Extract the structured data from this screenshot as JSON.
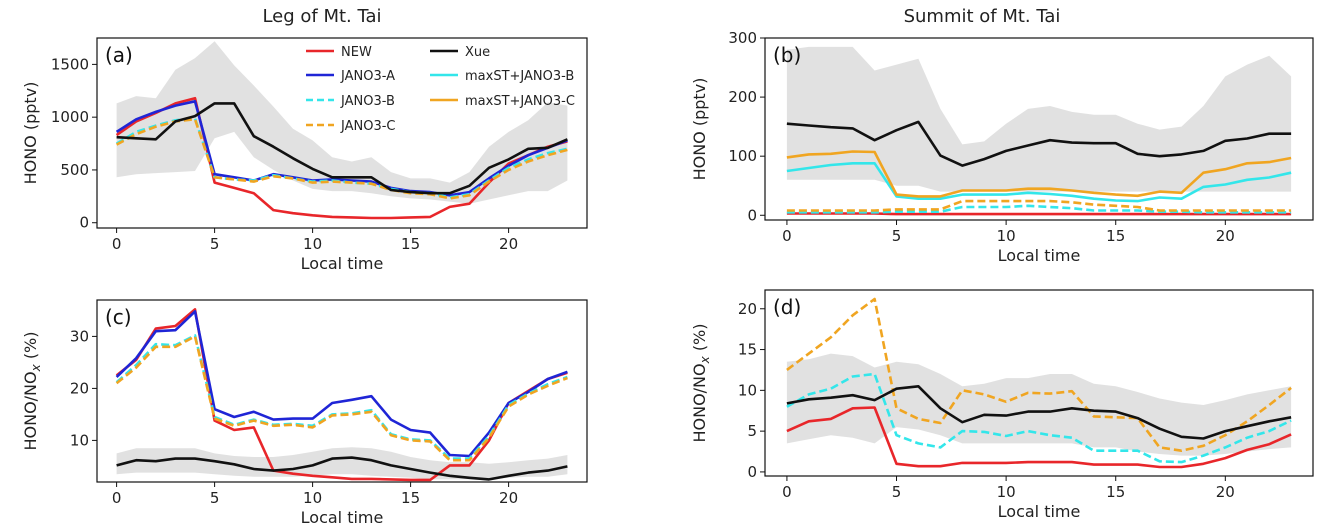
{
  "column_titles": [
    "Leg of Mt. Tai",
    "Summit of Mt. Tai"
  ],
  "colors": {
    "NEW": "#e8262a",
    "JANO3-A": "#1f25d6",
    "JANO3-B": "#33e6ea",
    "JANO3-C": "#f0a521",
    "Xue": "#111111",
    "maxST+JANO3-B": "#33e6ea",
    "maxST+JANO3-C": "#f0a521",
    "band": "#dcdcdc"
  },
  "legend": [
    {
      "name": "NEW",
      "style": "solid"
    },
    {
      "name": "Xue",
      "style": "solid"
    },
    {
      "name": "JANO3-A",
      "style": "solid"
    },
    {
      "name": "maxST+JANO3-B",
      "style": "solid"
    },
    {
      "name": "JANO3-B",
      "style": "dashed"
    },
    {
      "name": "maxST+JANO3-C",
      "style": "solid"
    },
    {
      "name": "JANO3-C",
      "style": "dashed"
    }
  ],
  "chart_data": [
    {
      "panel": "(a)",
      "type": "line",
      "title": "Leg of Mt. Tai",
      "xlabel": "Local time",
      "ylabel": "HONO (pptv)",
      "xlim": [
        -1,
        24
      ],
      "ylim": [
        -50,
        1750
      ],
      "xticks": [
        0,
        5,
        10,
        15,
        20
      ],
      "yticks": [
        0,
        500,
        1000,
        1500
      ],
      "x": [
        0,
        1,
        2,
        3,
        4,
        5,
        6,
        7,
        8,
        9,
        10,
        11,
        12,
        13,
        14,
        15,
        16,
        17,
        18,
        19,
        20,
        21,
        22,
        23
      ],
      "band": {
        "lower": [
          430,
          460,
          470,
          480,
          490,
          800,
          860,
          620,
          500,
          400,
          320,
          300,
          300,
          280,
          250,
          230,
          220,
          200,
          180,
          220,
          260,
          300,
          300,
          400
        ],
        "upper": [
          1130,
          1200,
          1180,
          1450,
          1560,
          1720,
          1490,
          1300,
          1100,
          890,
          780,
          620,
          580,
          620,
          480,
          420,
          420,
          380,
          480,
          720,
          860,
          970,
          1140,
          1110
        ]
      },
      "series": [
        {
          "name": "NEW",
          "style": "solid",
          "values": [
            830,
            960,
            1040,
            1130,
            1180,
            380,
            330,
            280,
            120,
            90,
            70,
            55,
            50,
            45,
            45,
            50,
            55,
            150,
            180,
            380,
            560,
            640,
            720,
            770
          ]
        },
        {
          "name": "JANO3-A",
          "style": "solid",
          "values": [
            860,
            980,
            1050,
            1110,
            1150,
            460,
            430,
            400,
            460,
            430,
            400,
            410,
            400,
            390,
            330,
            300,
            290,
            260,
            290,
            420,
            540,
            640,
            710,
            780
          ]
        },
        {
          "name": "JANO3-B",
          "style": "dashed",
          "values": [
            750,
            860,
            920,
            970,
            990,
            430,
            410,
            400,
            450,
            420,
            390,
            400,
            380,
            370,
            320,
            290,
            280,
            240,
            270,
            400,
            520,
            600,
            660,
            700
          ]
        },
        {
          "name": "JANO3-C",
          "style": "dashed",
          "values": [
            740,
            840,
            910,
            960,
            980,
            430,
            410,
            390,
            440,
            420,
            380,
            390,
            380,
            370,
            310,
            280,
            270,
            230,
            260,
            390,
            500,
            580,
            640,
            690
          ]
        },
        {
          "name": "Xue",
          "style": "solid",
          "values": [
            810,
            800,
            790,
            960,
            1010,
            1130,
            1130,
            820,
            720,
            610,
            510,
            430,
            430,
            430,
            310,
            290,
            280,
            280,
            350,
            520,
            600,
            700,
            710,
            790
          ]
        }
      ]
    },
    {
      "panel": "(b)",
      "type": "line",
      "title": "Summit of Mt. Tai",
      "xlabel": "Local time",
      "ylabel": "HONO (pptv)",
      "xlim": [
        -1,
        24
      ],
      "ylim": [
        -8,
        300
      ],
      "xticks": [
        0,
        5,
        10,
        15,
        20
      ],
      "yticks": [
        0,
        100,
        200,
        300
      ],
      "x": [
        0,
        1,
        2,
        3,
        4,
        5,
        6,
        7,
        8,
        9,
        10,
        11,
        12,
        13,
        14,
        15,
        16,
        17,
        18,
        19,
        20,
        21,
        22,
        23
      ],
      "band": {
        "lower": [
          60,
          60,
          60,
          60,
          60,
          50,
          50,
          40,
          40,
          40,
          40,
          40,
          40,
          40,
          40,
          40,
          40,
          40,
          40,
          40,
          40,
          40,
          40,
          40
        ],
        "upper": [
          280,
          285,
          285,
          285,
          245,
          255,
          265,
          180,
          120,
          125,
          155,
          180,
          185,
          175,
          170,
          170,
          155,
          145,
          150,
          185,
          235,
          255,
          270,
          235
        ]
      },
      "series": [
        {
          "name": "NEW",
          "style": "solid",
          "values": [
            3,
            3,
            3,
            3,
            3,
            2,
            2,
            2,
            2,
            2,
            2,
            2,
            2,
            2,
            2,
            2,
            2,
            2,
            2,
            2,
            2,
            2,
            2,
            2
          ]
        },
        {
          "name": "JANO3-B",
          "style": "dashed",
          "values": [
            5,
            5,
            5,
            5,
            5,
            6,
            6,
            6,
            14,
            14,
            14,
            16,
            14,
            12,
            8,
            8,
            8,
            6,
            6,
            5,
            5,
            5,
            5,
            5
          ]
        },
        {
          "name": "JANO3-C",
          "style": "dashed",
          "values": [
            8,
            8,
            8,
            8,
            8,
            10,
            10,
            10,
            24,
            24,
            24,
            24,
            24,
            22,
            18,
            16,
            14,
            8,
            8,
            8,
            8,
            8,
            8,
            8
          ]
        },
        {
          "name": "maxST+JANO3-B",
          "style": "solid",
          "values": [
            75,
            80,
            85,
            88,
            88,
            32,
            28,
            28,
            35,
            35,
            35,
            38,
            36,
            33,
            28,
            25,
            24,
            30,
            28,
            48,
            52,
            60,
            64,
            72
          ]
        },
        {
          "name": "maxST+JANO3-C",
          "style": "solid",
          "values": [
            98,
            103,
            104,
            108,
            107,
            35,
            32,
            32,
            42,
            42,
            42,
            45,
            45,
            42,
            38,
            35,
            33,
            40,
            38,
            72,
            78,
            88,
            90,
            97
          ]
        },
        {
          "name": "Xue",
          "style": "solid",
          "values": [
            155,
            152,
            149,
            147,
            127,
            144,
            158,
            101,
            84,
            95,
            109,
            118,
            127,
            123,
            122,
            122,
            104,
            100,
            103,
            109,
            126,
            130,
            138,
            138
          ]
        }
      ]
    },
    {
      "panel": "(c)",
      "type": "line",
      "xlabel": "Local time",
      "ylabel": "HONO/NO$_x$ (%)",
      "xlim": [
        -1,
        24
      ],
      "ylim": [
        2,
        37
      ],
      "xticks": [
        0,
        5,
        10,
        15,
        20
      ],
      "yticks": [
        10,
        20,
        30
      ],
      "x": [
        0,
        1,
        2,
        3,
        4,
        5,
        6,
        7,
        8,
        9,
        10,
        11,
        12,
        13,
        14,
        15,
        16,
        17,
        18,
        19,
        20,
        21,
        22,
        23
      ],
      "band": {
        "lower": [
          3.5,
          3.8,
          3.8,
          3.8,
          3.8,
          3.5,
          3.2,
          3.0,
          3.0,
          3.0,
          3.2,
          3.5,
          3.5,
          3.2,
          3.0,
          2.8,
          2.5,
          2.5,
          2.5,
          2.5,
          2.8,
          3.0,
          3.0,
          3.5
        ],
        "upper": [
          7.5,
          8.5,
          8.5,
          8.5,
          8.5,
          7.5,
          7.0,
          6.8,
          6.8,
          7.2,
          7.8,
          8.5,
          8.7,
          8.5,
          7.8,
          6.8,
          6.2,
          5.8,
          5.8,
          5.5,
          5.8,
          6.2,
          6.5,
          7.2
        ]
      },
      "series": [
        {
          "name": "NEW",
          "style": "solid",
          "values": [
            22.5,
            25.5,
            31.5,
            32.0,
            35.2,
            13.8,
            12.0,
            12.5,
            4.2,
            3.6,
            3.2,
            2.9,
            2.6,
            2.6,
            2.5,
            2.4,
            2.4,
            5.2,
            5.2,
            10.0,
            17.2,
            19.5,
            21.8,
            23.0
          ]
        },
        {
          "name": "JANO3-A",
          "style": "solid",
          "values": [
            22.2,
            25.8,
            31.0,
            31.2,
            34.8,
            16.0,
            14.5,
            15.5,
            14.0,
            14.2,
            14.2,
            17.2,
            17.8,
            18.5,
            14.0,
            12.0,
            11.5,
            7.2,
            7.0,
            11.5,
            17.2,
            19.3,
            21.8,
            23.2
          ]
        },
        {
          "name": "JANO3-B",
          "style": "dashed",
          "values": [
            21.2,
            24.5,
            28.5,
            28.3,
            30.2,
            14.5,
            13.0,
            14.0,
            13.0,
            13.2,
            12.8,
            15.0,
            15.2,
            15.8,
            11.2,
            10.2,
            10.0,
            6.5,
            6.5,
            10.8,
            16.8,
            19.0,
            20.8,
            22.2
          ]
        },
        {
          "name": "JANO3-C",
          "style": "dashed",
          "values": [
            21.0,
            24.0,
            28.0,
            28.0,
            30.0,
            14.2,
            12.8,
            13.8,
            12.8,
            13.0,
            12.5,
            14.8,
            15.0,
            15.5,
            11.0,
            10.0,
            9.8,
            6.2,
            6.2,
            10.5,
            16.5,
            18.8,
            20.5,
            22.0
          ]
        },
        {
          "name": "Xue",
          "style": "solid",
          "values": [
            5.2,
            6.2,
            6.0,
            6.5,
            6.5,
            6.0,
            5.4,
            4.5,
            4.2,
            4.5,
            5.2,
            6.5,
            6.7,
            6.2,
            5.2,
            4.5,
            3.8,
            3.2,
            2.8,
            2.5,
            3.2,
            3.8,
            4.2,
            5.0
          ]
        }
      ]
    },
    {
      "panel": "(d)",
      "type": "line",
      "xlabel": "Local time",
      "ylabel": "HONO/NO$_x$ (%)",
      "xlim": [
        -1,
        24
      ],
      "ylim": [
        -0.5,
        22.3
      ],
      "xticks": [
        0,
        5,
        10,
        15,
        20
      ],
      "yticks": [
        0,
        5,
        10,
        15,
        20
      ],
      "x": [
        0,
        1,
        2,
        3,
        4,
        5,
        6,
        7,
        8,
        9,
        10,
        11,
        12,
        13,
        14,
        15,
        16,
        17,
        18,
        19,
        20,
        21,
        22,
        23
      ],
      "band": {
        "lower": [
          3.5,
          4.0,
          4.5,
          4.2,
          3.5,
          5.5,
          5.2,
          4.5,
          3.5,
          3.5,
          3.5,
          3.5,
          3.5,
          3.5,
          3.0,
          3.0,
          2.5,
          2.2,
          2.0,
          2.0,
          2.2,
          2.5,
          2.8,
          3.0
        ],
        "upper": [
          13.5,
          13.8,
          14.5,
          14.2,
          12.8,
          13.5,
          13.2,
          12.0,
          10.5,
          10.8,
          11.5,
          11.5,
          12.0,
          12.0,
          10.8,
          10.5,
          9.8,
          9.0,
          8.5,
          8.2,
          8.8,
          9.5,
          10.0,
          10.5
        ]
      },
      "series": [
        {
          "name": "NEW",
          "style": "solid",
          "values": [
            5.0,
            6.2,
            6.5,
            7.8,
            7.9,
            1.0,
            0.7,
            0.7,
            1.1,
            1.1,
            1.1,
            1.2,
            1.2,
            1.2,
            0.9,
            0.9,
            0.9,
            0.6,
            0.6,
            1.0,
            1.7,
            2.7,
            3.4,
            4.6
          ]
        },
        {
          "name": "JANO3-B",
          "style": "dashed",
          "values": [
            8.0,
            9.5,
            10.2,
            11.7,
            12.0,
            4.5,
            3.5,
            3.0,
            5.0,
            4.9,
            4.4,
            5.0,
            4.5,
            4.2,
            2.6,
            2.6,
            2.6,
            1.3,
            1.2,
            2.0,
            3.0,
            4.2,
            5.0,
            6.3
          ]
        },
        {
          "name": "JANO3-C",
          "style": "dashed",
          "values": [
            12.5,
            14.5,
            16.5,
            19.2,
            21.2,
            7.8,
            6.5,
            6.0,
            10.0,
            9.5,
            8.6,
            9.7,
            9.6,
            9.9,
            6.8,
            6.7,
            6.6,
            3.0,
            2.6,
            3.2,
            4.5,
            6.2,
            8.2,
            10.3
          ]
        },
        {
          "name": "Xue",
          "style": "solid",
          "values": [
            8.4,
            8.9,
            9.1,
            9.4,
            8.8,
            10.2,
            10.5,
            7.8,
            6.1,
            7.0,
            6.9,
            7.4,
            7.4,
            7.8,
            7.5,
            7.4,
            6.6,
            5.3,
            4.3,
            4.1,
            5.0,
            5.6,
            6.2,
            6.7
          ]
        }
      ]
    }
  ]
}
